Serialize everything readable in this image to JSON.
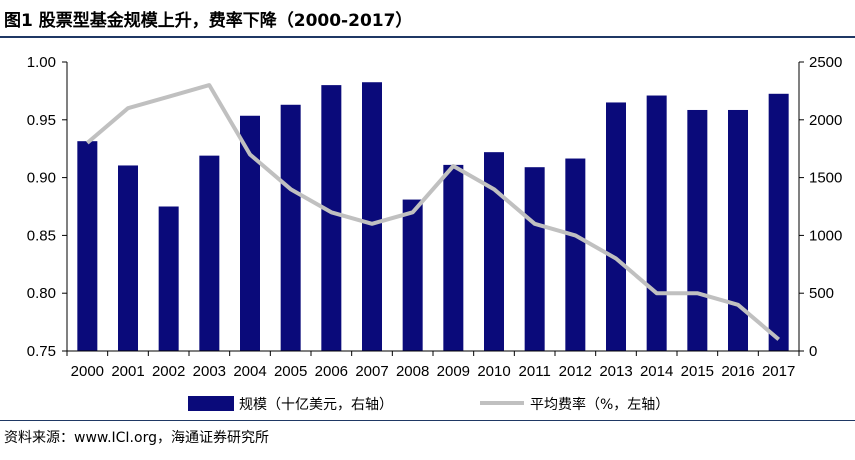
{
  "page": {
    "title": "图1  股票型基金规模上升，费率下降（2000-2017）",
    "source": "资料来源：www.ICI.org，海通证券研究所"
  },
  "chart_data": {
    "type": "bar+line",
    "categories": [
      "2000",
      "2001",
      "2002",
      "2003",
      "2004",
      "2005",
      "2006",
      "2007",
      "2008",
      "2009",
      "2010",
      "2011",
      "2012",
      "2013",
      "2014",
      "2015",
      "2016",
      "2017"
    ],
    "series": [
      {
        "name": "规模（十亿美元，右轴）",
        "type": "bar",
        "axis": "right",
        "color": "#0a0a7a",
        "values": [
          1815,
          1605,
          1250,
          1690,
          2035,
          2130,
          2300,
          2325,
          1310,
          1610,
          1720,
          1590,
          1665,
          2150,
          2210,
          2085,
          2085,
          2225
        ]
      },
      {
        "name": "平均费率（%，左轴）",
        "type": "line",
        "axis": "left",
        "color": "#c0c0c0",
        "values": [
          0.93,
          0.96,
          0.97,
          0.98,
          0.92,
          0.89,
          0.87,
          0.86,
          0.87,
          0.91,
          0.89,
          0.86,
          0.85,
          0.83,
          0.8,
          0.8,
          0.79,
          0.76
        ]
      }
    ],
    "left_axis": {
      "ylim": [
        0.75,
        1.0
      ],
      "ticks": [
        "1.00",
        "0.95",
        "0.90",
        "0.85",
        "0.80",
        "0.75"
      ]
    },
    "right_axis": {
      "ylim": [
        0,
        2500
      ],
      "ticks": [
        "2500",
        "2000",
        "1500",
        "1000",
        "500",
        "0"
      ]
    },
    "grid": false,
    "legend_position": "bottom"
  }
}
